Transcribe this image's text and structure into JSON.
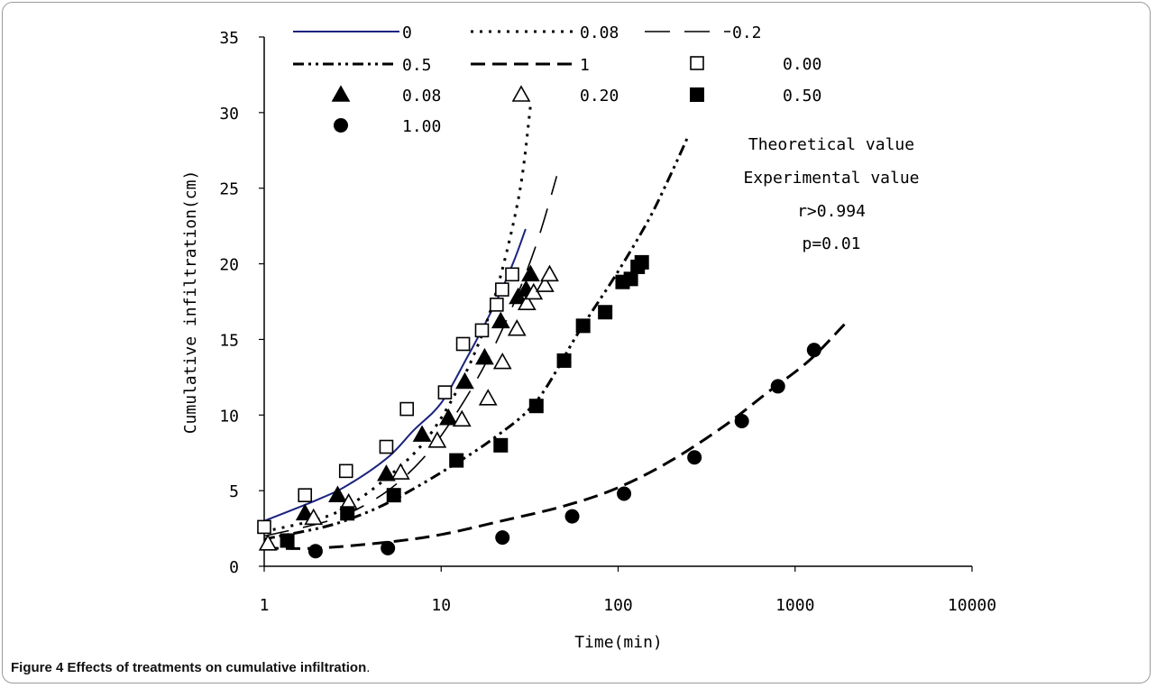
{
  "chart_data": {
    "type": "scatter",
    "xscale": "log",
    "xlim": [
      1,
      10000
    ],
    "ylim": [
      0,
      35
    ],
    "xticks": [
      1,
      10,
      100,
      1000,
      10000
    ],
    "xtick_labels": [
      "1",
      "10",
      "100",
      "1000",
      "10000"
    ],
    "yticks": [
      0,
      5,
      10,
      15,
      20,
      25,
      30,
      35
    ],
    "ytick_labels": [
      "0",
      "5",
      "10",
      "15",
      "20",
      "25",
      "30",
      "35"
    ],
    "xlabel": "Time(min)",
    "ylabel": "Cumulative infiltration(cm)",
    "grid": false,
    "legend_position": "top",
    "annotations": [
      "Theoretical value",
      "Experimental value",
      "r>0.994",
      "p=0.01"
    ],
    "lines": [
      {
        "name": "0",
        "style": "solid",
        "color": "#1a237e",
        "x": [
          1,
          2,
          3,
          5,
          7,
          10,
          14,
          18,
          22,
          26,
          30
        ],
        "y": [
          3.0,
          4.4,
          5.4,
          7.2,
          9.0,
          10.8,
          13.8,
          16.2,
          18.3,
          20.3,
          22.3
        ]
      },
      {
        "name": "0.08",
        "style": "dotted",
        "color": "#000000",
        "x": [
          1,
          2,
          3,
          5,
          8,
          12,
          17,
          22,
          28,
          32
        ],
        "y": [
          2.3,
          3.1,
          4.0,
          5.9,
          8.2,
          11.4,
          15.3,
          19.5,
          25.0,
          30.5
        ]
      },
      {
        "name": "0.2",
        "style": "longdash",
        "color": "#000000",
        "x": [
          1,
          2,
          3,
          5,
          8,
          12,
          18,
          26,
          35,
          45
        ],
        "y": [
          2.0,
          2.8,
          3.5,
          5.0,
          7.2,
          10.0,
          13.5,
          17.5,
          21.5,
          25.8
        ]
      },
      {
        "name": "0.5",
        "style": "dashdot",
        "color": "#000000",
        "x": [
          1,
          2,
          3,
          5,
          10,
          20,
          35,
          60,
          100,
          150,
          200,
          250
        ],
        "y": [
          1.8,
          2.5,
          3.1,
          4.2,
          6.2,
          8.5,
          11.0,
          15.5,
          19.5,
          23.0,
          26.0,
          28.5
        ]
      },
      {
        "name": "1",
        "style": "dash",
        "color": "#000000",
        "x": [
          1,
          2,
          5,
          10,
          22,
          50,
          100,
          200,
          400,
          700,
          1200,
          1900
        ],
        "y": [
          1.2,
          1.2,
          1.6,
          2.1,
          3.0,
          4.0,
          5.2,
          7.0,
          9.3,
          11.5,
          13.6,
          16.0
        ]
      }
    ],
    "markers": [
      {
        "name": "0.00",
        "marker": "square-open",
        "x": [
          1.0,
          1.7,
          2.9,
          4.9,
          6.4,
          10.5,
          13.3,
          17.0,
          20.6,
          22.1,
          25.2
        ],
        "y": [
          2.6,
          4.7,
          6.3,
          7.9,
          10.4,
          11.5,
          14.7,
          15.6,
          17.3,
          18.3,
          19.3
        ]
      },
      {
        "name": "0.08",
        "marker": "triangle-filled",
        "x": [
          1.7,
          2.6,
          4.9,
          7.8,
          11.0,
          13.6,
          17.6,
          21.7,
          27.2,
          30.2,
          32.0
        ],
        "y": [
          3.5,
          4.7,
          6.1,
          8.7,
          9.8,
          12.2,
          13.8,
          16.2,
          17.8,
          18.3,
          19.3
        ]
      },
      {
        "name": "0.20",
        "marker": "triangle-open",
        "x": [
          1.05,
          1.9,
          3.0,
          5.9,
          9.5,
          13.1,
          18.4,
          22.2,
          26.8,
          30.5,
          33.3,
          38.6,
          41.0
        ],
        "y": [
          1.5,
          3.2,
          4.2,
          6.2,
          8.3,
          9.7,
          11.1,
          13.5,
          15.7,
          17.4,
          18.1,
          18.6,
          19.3
        ]
      },
      {
        "name": "0.50",
        "marker": "square-filled",
        "x": [
          1.35,
          2.95,
          5.4,
          12.2,
          21.7,
          34.5,
          49.5,
          63.4,
          84.5,
          106,
          118,
          129,
          136
        ],
        "y": [
          1.7,
          3.5,
          4.7,
          7.0,
          8.0,
          10.6,
          13.6,
          15.9,
          16.8,
          18.8,
          19.0,
          19.8,
          20.1
        ]
      },
      {
        "name": "1.00",
        "marker": "circle-filled",
        "x": [
          1.95,
          5.0,
          22.2,
          55.0,
          108,
          270,
          500,
          800,
          1280
        ],
        "y": [
          1.0,
          1.2,
          1.9,
          3.3,
          4.8,
          7.2,
          9.6,
          11.9,
          14.3
        ]
      }
    ]
  },
  "caption": {
    "label": "Figure 4",
    "text": "Effects of treatments on cumulative infiltration",
    "end": "."
  }
}
